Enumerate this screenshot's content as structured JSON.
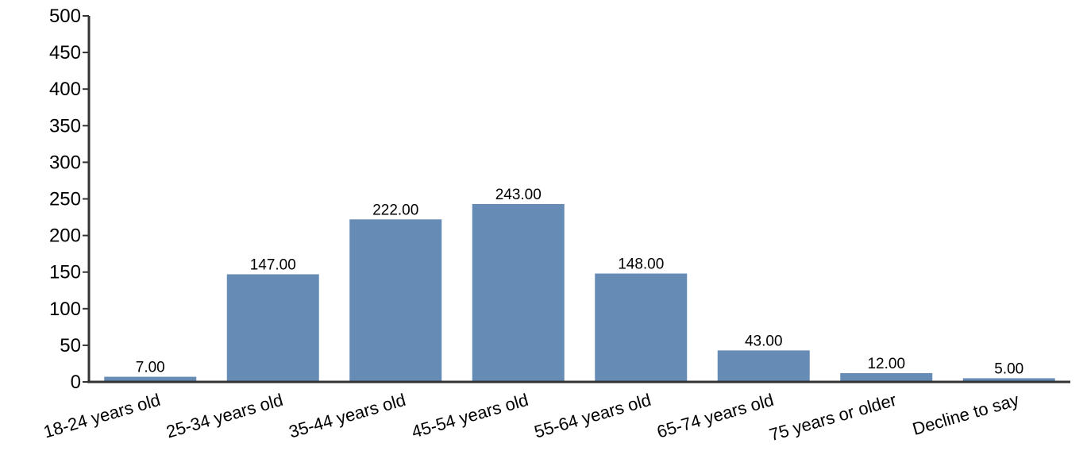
{
  "chart_data": {
    "type": "bar",
    "categories": [
      "18-24 years old",
      "25-34 years old",
      "35-44 years old",
      "45-54 years old",
      "55-64 years old",
      "65-74 years old",
      "75 years or older",
      "Decline to say"
    ],
    "values": [
      7,
      147,
      222,
      243,
      148,
      43,
      12,
      5
    ],
    "value_labels": [
      "7.00",
      "147.00",
      "222.00",
      "243.00",
      "148.00",
      "43.00",
      "12.00",
      "5.00"
    ],
    "ylim": [
      0,
      500
    ],
    "yticks": [
      "0",
      "50",
      "100",
      "150",
      "200",
      "250",
      "300",
      "350",
      "400",
      "450",
      "500"
    ],
    "title": "",
    "xlabel": "",
    "ylabel": "",
    "grid": false,
    "bar_color": "#668bb5",
    "axis_color": "#333333"
  }
}
